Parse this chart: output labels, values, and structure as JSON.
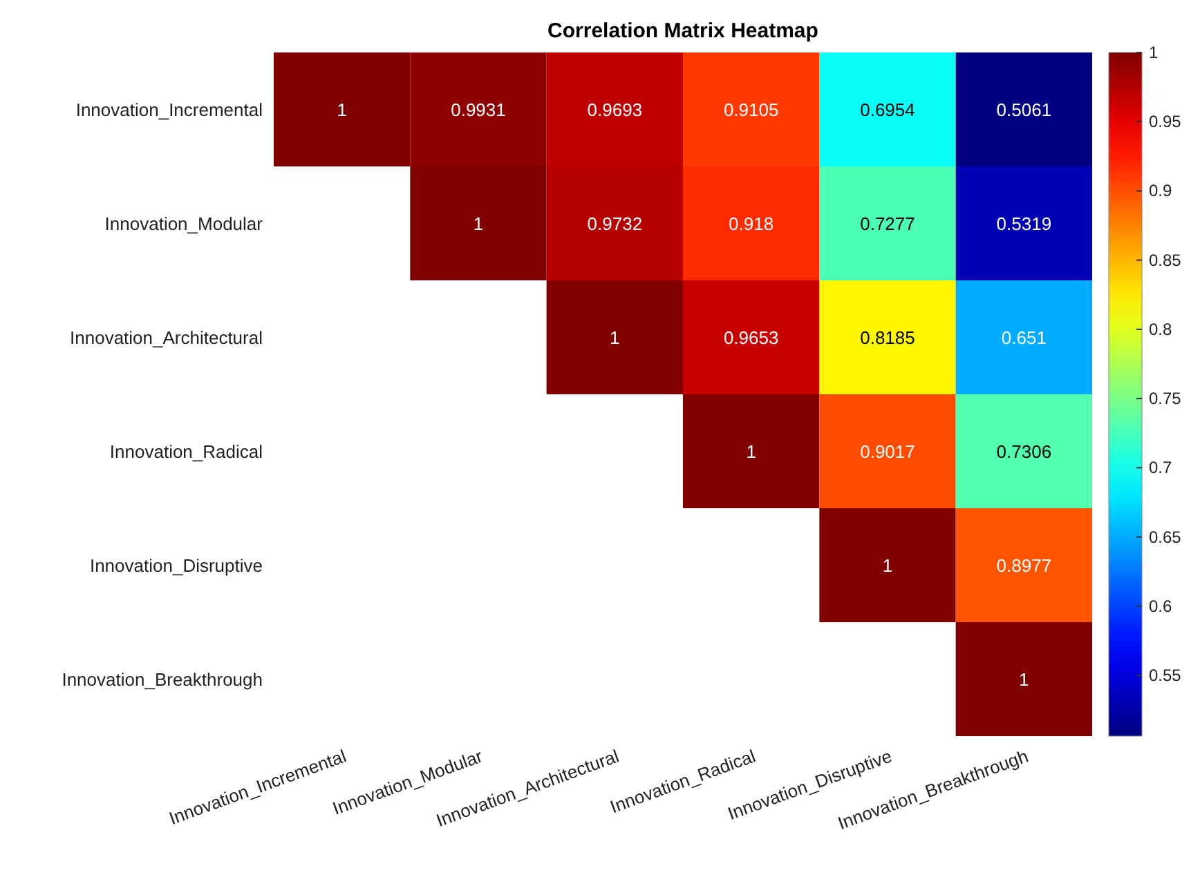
{
  "chart_data": {
    "type": "heatmap",
    "title": "Correlation Matrix Heatmap",
    "categories": [
      "Innovation_Incremental",
      "Innovation_Modular",
      "Innovation_Architectural",
      "Innovation_Radical",
      "Innovation_Disruptive",
      "Innovation_Breakthrough"
    ],
    "y_categories": [
      "Innovation_Incremental",
      "Innovation_Modular",
      "Innovation_Architectural",
      "Innovation_Radical",
      "Innovation_Disruptive",
      "Innovation_Breakthrough"
    ],
    "cells": [
      [
        1,
        0.9931,
        0.9693,
        0.9105,
        0.6954,
        0.5061
      ],
      [
        null,
        1,
        0.9732,
        0.918,
        0.7277,
        0.5319
      ],
      [
        null,
        null,
        1,
        0.9653,
        0.8185,
        0.651
      ],
      [
        null,
        null,
        null,
        1,
        0.9017,
        0.7306
      ],
      [
        null,
        null,
        null,
        null,
        1,
        0.8977
      ],
      [
        null,
        null,
        null,
        null,
        null,
        1
      ]
    ],
    "clim": [
      0.5061,
      1
    ],
    "cticks": [
      0.55,
      0.6,
      0.65,
      0.7,
      0.75,
      0.8,
      0.85,
      0.9,
      0.95,
      1
    ],
    "data_labels": true
  }
}
